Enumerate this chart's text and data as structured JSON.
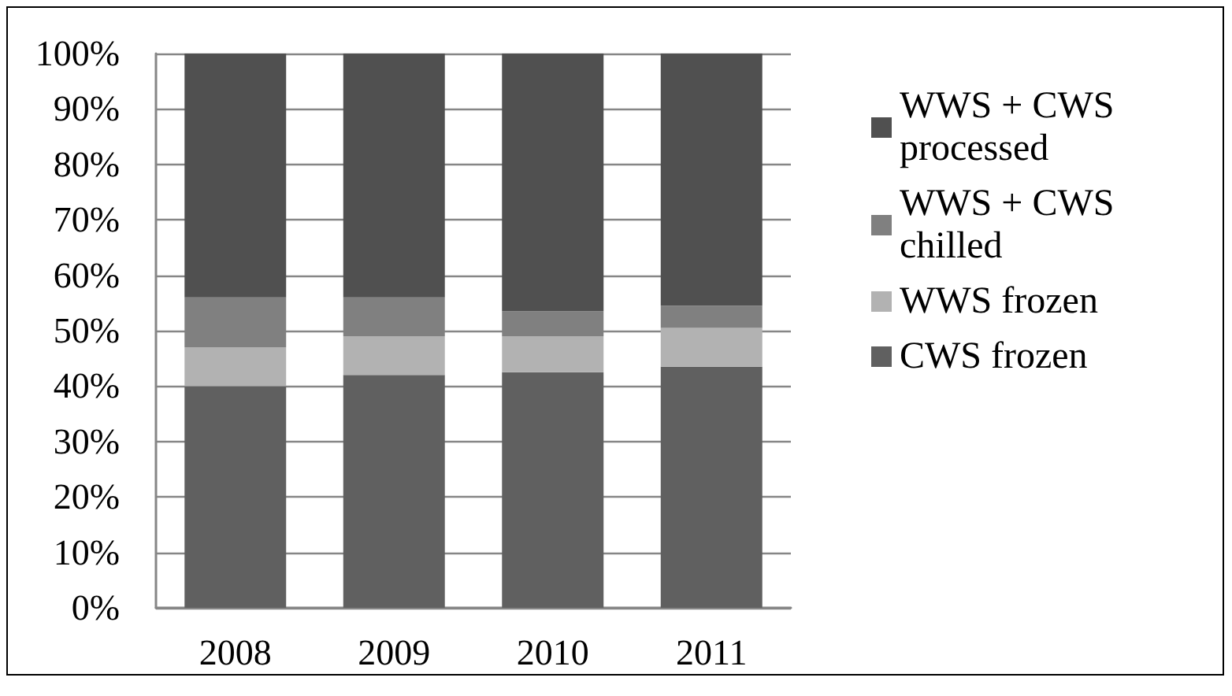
{
  "chart_data": {
    "type": "bar",
    "stacked": true,
    "categories": [
      "2008",
      "2009",
      "2010",
      "2011"
    ],
    "series": [
      {
        "name": "CWS frozen",
        "color": "#606060",
        "values": [
          40,
          42,
          42.5,
          43.5
        ]
      },
      {
        "name": "WWS frozen",
        "color": "#b2b2b2",
        "values": [
          7,
          7,
          6.5,
          7
        ]
      },
      {
        "name": "WWS + CWS chilled",
        "color": "#808080",
        "values": [
          9,
          7,
          4.5,
          4
        ]
      },
      {
        "name": "WWS + CWS processed",
        "color": "#505050",
        "values": [
          44,
          44,
          46.5,
          45.5
        ]
      }
    ],
    "ylim": [
      0,
      100
    ],
    "yticks": [
      {
        "value": 0,
        "label": "0%"
      },
      {
        "value": 10,
        "label": "10%"
      },
      {
        "value": 20,
        "label": "20%"
      },
      {
        "value": 30,
        "label": "30%"
      },
      {
        "value": 40,
        "label": "40%"
      },
      {
        "value": 50,
        "label": "50%"
      },
      {
        "value": 60,
        "label": "60%"
      },
      {
        "value": 70,
        "label": "70%"
      },
      {
        "value": 80,
        "label": "80%"
      },
      {
        "value": 90,
        "label": "90%"
      },
      {
        "value": 100,
        "label": "100%"
      }
    ],
    "grid": "y",
    "legend": "right"
  }
}
